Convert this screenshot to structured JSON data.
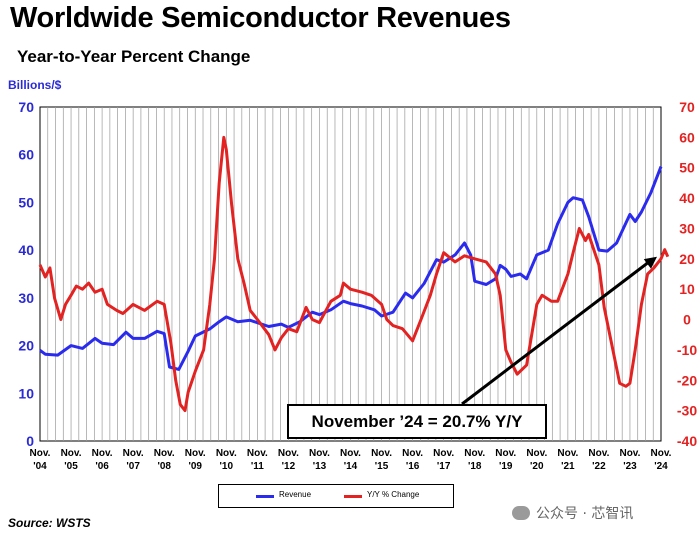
{
  "header": {
    "title": "Worldwide Semiconductor Revenues",
    "subtitle": "Year-to-Year Percent Change",
    "y_unit": "Billions/$"
  },
  "annotation": {
    "text": "November ’24 = 20.7% Y/Y"
  },
  "legend": {
    "items": [
      {
        "label": "Revenue",
        "color": "#2b2bee"
      },
      {
        "label": "Y/Y % Change",
        "color": "#e32222"
      }
    ]
  },
  "footer": {
    "source": "Source: WSTS",
    "watermark": "公众号 · 芯智讯"
  },
  "chart_data": {
    "type": "line",
    "x_tick_labels": [
      [
        "Nov.",
        "'04"
      ],
      [
        "Nov.",
        "'05"
      ],
      [
        "Nov.",
        "'06"
      ],
      [
        "Nov.",
        "'07"
      ],
      [
        "Nov.",
        "'08"
      ],
      [
        "Nov.",
        "'09"
      ],
      [
        "Nov.",
        "'10"
      ],
      [
        "Nov.",
        "'11"
      ],
      [
        "Nov.",
        "'12"
      ],
      [
        "Nov.",
        "'13"
      ],
      [
        "Nov.",
        "'14"
      ],
      [
        "Nov.",
        "'15"
      ],
      [
        "Nov.",
        "'16"
      ],
      [
        "Nov.",
        "'17"
      ],
      [
        "Nov.",
        "'18"
      ],
      [
        "Nov.",
        "'19"
      ],
      [
        "Nov.",
        "'20"
      ],
      [
        "Nov.",
        "'21"
      ],
      [
        "Nov.",
        "'22"
      ],
      [
        "Nov.",
        "'23"
      ],
      [
        "Nov.",
        "'24"
      ]
    ],
    "x_range": [
      2004.83,
      2024.83
    ],
    "left_axis": {
      "label": "Billions/$",
      "range": [
        0,
        70
      ],
      "ticks": [
        0,
        10,
        20,
        30,
        40,
        50,
        60,
        70
      ],
      "color": "#2b2bd6"
    },
    "right_axis": {
      "range": [
        -40,
        70
      ],
      "ticks": [
        -40,
        -30,
        -20,
        -10,
        0,
        10,
        20,
        30,
        40,
        50,
        60,
        70
      ],
      "color": "#e32222"
    },
    "grid": "vertical",
    "legend_position": "bottom-center",
    "series": [
      {
        "name": "Revenue",
        "axis": "left",
        "color": "#2b2bee",
        "points": [
          [
            2004.83,
            19.0
          ],
          [
            2005.0,
            18.2
          ],
          [
            2005.4,
            18.0
          ],
          [
            2005.83,
            20.0
          ],
          [
            2006.2,
            19.4
          ],
          [
            2006.6,
            21.5
          ],
          [
            2006.83,
            20.5
          ],
          [
            2007.2,
            20.2
          ],
          [
            2007.6,
            22.8
          ],
          [
            2007.83,
            21.5
          ],
          [
            2008.2,
            21.5
          ],
          [
            2008.6,
            23.0
          ],
          [
            2008.83,
            22.5
          ],
          [
            2009.0,
            15.5
          ],
          [
            2009.3,
            15.0
          ],
          [
            2009.6,
            18.8
          ],
          [
            2009.83,
            22.0
          ],
          [
            2010.3,
            23.5
          ],
          [
            2010.6,
            25.0
          ],
          [
            2010.83,
            26.0
          ],
          [
            2011.2,
            25.0
          ],
          [
            2011.6,
            25.3
          ],
          [
            2011.83,
            24.8
          ],
          [
            2012.2,
            24.0
          ],
          [
            2012.6,
            24.5
          ],
          [
            2012.83,
            23.8
          ],
          [
            2013.2,
            25.0
          ],
          [
            2013.6,
            27.0
          ],
          [
            2013.83,
            26.5
          ],
          [
            2014.2,
            27.5
          ],
          [
            2014.6,
            29.3
          ],
          [
            2014.83,
            28.8
          ],
          [
            2015.2,
            28.3
          ],
          [
            2015.6,
            27.5
          ],
          [
            2015.83,
            26.2
          ],
          [
            2016.2,
            27.0
          ],
          [
            2016.6,
            31.0
          ],
          [
            2016.83,
            30.0
          ],
          [
            2017.2,
            33.0
          ],
          [
            2017.6,
            38.0
          ],
          [
            2017.83,
            37.5
          ],
          [
            2018.2,
            39.0
          ],
          [
            2018.5,
            41.5
          ],
          [
            2018.7,
            39.0
          ],
          [
            2018.83,
            33.5
          ],
          [
            2019.2,
            32.8
          ],
          [
            2019.5,
            34.0
          ],
          [
            2019.65,
            36.8
          ],
          [
            2019.83,
            36.0
          ],
          [
            2020.0,
            34.5
          ],
          [
            2020.3,
            35.0
          ],
          [
            2020.5,
            34.0
          ],
          [
            2020.83,
            39.0
          ],
          [
            2021.2,
            40.0
          ],
          [
            2021.5,
            45.5
          ],
          [
            2021.83,
            50.0
          ],
          [
            2022.0,
            51.0
          ],
          [
            2022.3,
            50.5
          ],
          [
            2022.5,
            47.0
          ],
          [
            2022.83,
            40.0
          ],
          [
            2023.1,
            39.8
          ],
          [
            2023.4,
            41.5
          ],
          [
            2023.83,
            47.5
          ],
          [
            2024.0,
            46.0
          ],
          [
            2024.2,
            48.0
          ],
          [
            2024.5,
            52.0
          ],
          [
            2024.83,
            57.5
          ]
        ]
      },
      {
        "name": "Y/Y % Change",
        "axis": "right",
        "color": "#e32222",
        "points": [
          [
            2004.83,
            18.0
          ],
          [
            2005.0,
            14.0
          ],
          [
            2005.15,
            17.0
          ],
          [
            2005.3,
            7.0
          ],
          [
            2005.5,
            0.0
          ],
          [
            2005.65,
            5.0
          ],
          [
            2005.83,
            8.0
          ],
          [
            2006.0,
            11.0
          ],
          [
            2006.2,
            10.0
          ],
          [
            2006.4,
            12.0
          ],
          [
            2006.6,
            9.0
          ],
          [
            2006.83,
            10.0
          ],
          [
            2007.0,
            5.0
          ],
          [
            2007.3,
            3.0
          ],
          [
            2007.5,
            2.0
          ],
          [
            2007.83,
            5.0
          ],
          [
            2008.2,
            3.0
          ],
          [
            2008.6,
            6.0
          ],
          [
            2008.83,
            5.0
          ],
          [
            2009.05,
            -8.0
          ],
          [
            2009.2,
            -20.0
          ],
          [
            2009.35,
            -28.0
          ],
          [
            2009.5,
            -30.0
          ],
          [
            2009.6,
            -24.0
          ],
          [
            2009.83,
            -17.0
          ],
          [
            2010.1,
            -10.0
          ],
          [
            2010.3,
            5.0
          ],
          [
            2010.45,
            20.0
          ],
          [
            2010.6,
            45.0
          ],
          [
            2010.75,
            60.0
          ],
          [
            2010.83,
            56.0
          ],
          [
            2011.0,
            38.0
          ],
          [
            2011.2,
            20.0
          ],
          [
            2011.4,
            12.0
          ],
          [
            2011.6,
            3.0
          ],
          [
            2011.83,
            0.0
          ],
          [
            2012.2,
            -5.0
          ],
          [
            2012.4,
            -10.0
          ],
          [
            2012.6,
            -6.0
          ],
          [
            2012.83,
            -3.0
          ],
          [
            2013.1,
            -4.0
          ],
          [
            2013.4,
            4.0
          ],
          [
            2013.6,
            0.0
          ],
          [
            2013.83,
            -1.0
          ],
          [
            2014.2,
            6.0
          ],
          [
            2014.5,
            8.0
          ],
          [
            2014.6,
            12.0
          ],
          [
            2014.83,
            10.0
          ],
          [
            2015.2,
            9.0
          ],
          [
            2015.5,
            8.0
          ],
          [
            2015.83,
            5.0
          ],
          [
            2016.0,
            0.0
          ],
          [
            2016.2,
            -2.0
          ],
          [
            2016.5,
            -3.0
          ],
          [
            2016.83,
            -7.0
          ],
          [
            2017.1,
            0.0
          ],
          [
            2017.4,
            8.0
          ],
          [
            2017.6,
            15.0
          ],
          [
            2017.83,
            22.0
          ],
          [
            2018.2,
            19.0
          ],
          [
            2018.5,
            21.0
          ],
          [
            2018.83,
            20.0
          ],
          [
            2019.2,
            19.0
          ],
          [
            2019.5,
            15.0
          ],
          [
            2019.65,
            8.0
          ],
          [
            2019.83,
            -10.0
          ],
          [
            2020.0,
            -14.0
          ],
          [
            2020.2,
            -18.0
          ],
          [
            2020.5,
            -15.0
          ],
          [
            2020.83,
            5.0
          ],
          [
            2021.0,
            8.0
          ],
          [
            2021.3,
            6.0
          ],
          [
            2021.5,
            6.0
          ],
          [
            2021.83,
            15.0
          ],
          [
            2022.0,
            22.0
          ],
          [
            2022.2,
            30.0
          ],
          [
            2022.4,
            26.0
          ],
          [
            2022.5,
            28.0
          ],
          [
            2022.83,
            18.0
          ],
          [
            2023.0,
            4.0
          ],
          [
            2023.2,
            -6.0
          ],
          [
            2023.5,
            -21.0
          ],
          [
            2023.7,
            -22.0
          ],
          [
            2023.83,
            -21.0
          ],
          [
            2024.0,
            -10.0
          ],
          [
            2024.2,
            5.0
          ],
          [
            2024.4,
            15.0
          ],
          [
            2024.6,
            17.0
          ],
          [
            2024.83,
            20.0
          ],
          [
            2024.95,
            23.0
          ],
          [
            2025.05,
            20.7
          ]
        ]
      }
    ]
  }
}
